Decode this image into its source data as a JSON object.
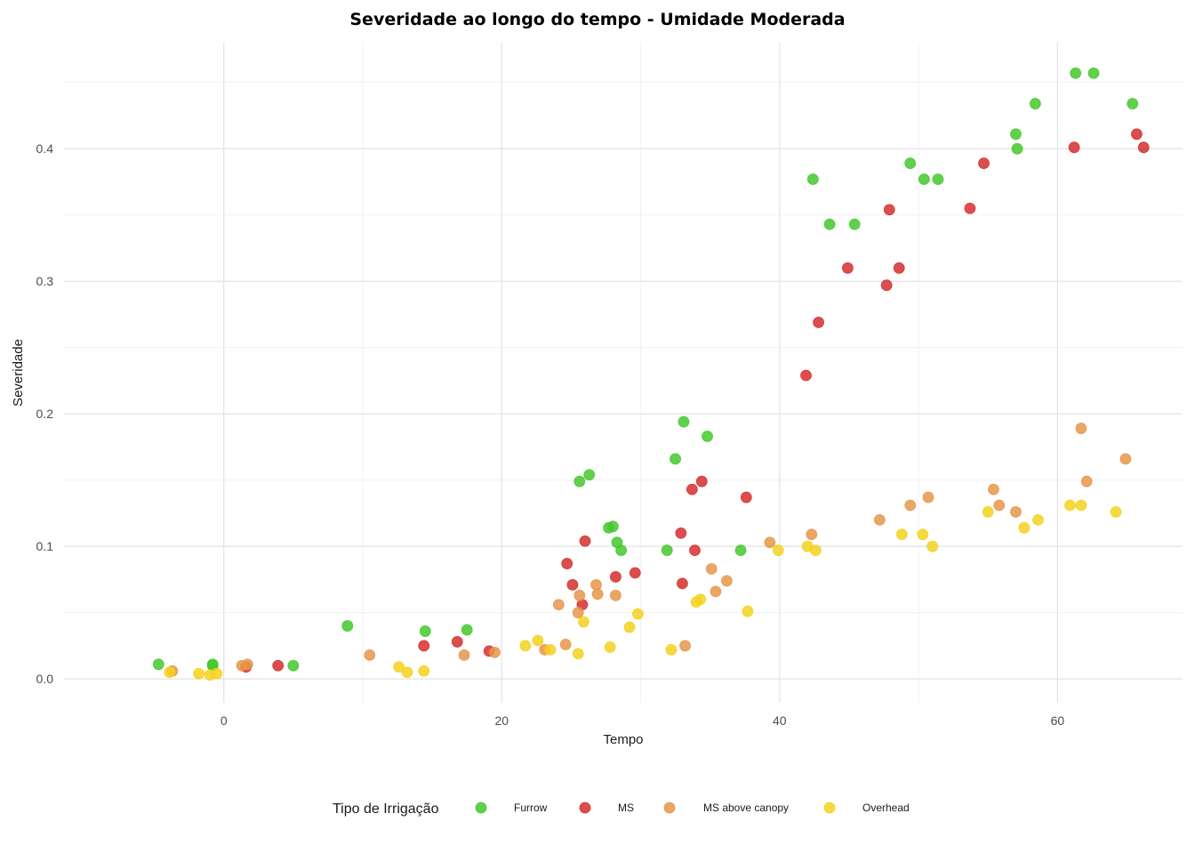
{
  "chart_data": {
    "type": "scatter",
    "title": "Severidade ao longo do tempo - Umidade Moderada",
    "xlabel": "Tempo",
    "ylabel": "Severidade",
    "xlim": [
      -11.5,
      69
    ],
    "ylim": [
      -0.018,
      0.48
    ],
    "x_ticks": [
      0,
      20,
      40,
      60
    ],
    "y_ticks": [
      0.0,
      0.1,
      0.2,
      0.3,
      0.4
    ],
    "x_tick_labels": [
      "0",
      "20",
      "40",
      "60"
    ],
    "y_tick_labels": [
      "0.0",
      "0.1",
      "0.2",
      "0.3",
      "0.4"
    ],
    "grid": true,
    "legend": {
      "title": "Tipo de Irrigação",
      "position": "bottom"
    },
    "series": [
      {
        "name": "Furrow",
        "color": "#44c82e",
        "points": [
          [
            -4.7,
            0.011
          ],
          [
            -0.8,
            0.011
          ],
          [
            -0.8,
            0.01
          ],
          [
            5,
            0.01
          ],
          [
            8.9,
            0.04
          ],
          [
            14.5,
            0.036
          ],
          [
            17.5,
            0.037
          ],
          [
            27.7,
            0.114
          ],
          [
            28.6,
            0.097
          ],
          [
            31.9,
            0.097
          ],
          [
            37.2,
            0.097
          ],
          [
            25.6,
            0.149
          ],
          [
            26.3,
            0.154
          ],
          [
            28.0,
            0.115
          ],
          [
            28.3,
            0.103
          ],
          [
            32.5,
            0.166
          ],
          [
            33.1,
            0.194
          ],
          [
            34.8,
            0.183
          ],
          [
            42.4,
            0.377
          ],
          [
            43.6,
            0.343
          ],
          [
            45.4,
            0.343
          ],
          [
            49.4,
            0.389
          ],
          [
            50.4,
            0.377
          ],
          [
            51.4,
            0.377
          ],
          [
            57.0,
            0.411
          ],
          [
            57.1,
            0.4
          ],
          [
            58.4,
            0.434
          ],
          [
            61.3,
            0.457
          ],
          [
            62.6,
            0.457
          ],
          [
            65.4,
            0.434
          ]
        ]
      },
      {
        "name": "MS",
        "color": "#d62f2f",
        "points": [
          [
            1.6,
            0.009
          ],
          [
            3.9,
            0.01
          ],
          [
            14.4,
            0.025
          ],
          [
            16.8,
            0.028
          ],
          [
            19.1,
            0.021
          ],
          [
            28.2,
            0.077
          ],
          [
            29.6,
            0.08
          ],
          [
            33.0,
            0.072
          ],
          [
            24.7,
            0.087
          ],
          [
            25.1,
            0.071
          ],
          [
            25.8,
            0.056
          ],
          [
            26.0,
            0.104
          ],
          [
            32.9,
            0.11
          ],
          [
            33.9,
            0.097
          ],
          [
            33.7,
            0.143
          ],
          [
            34.4,
            0.149
          ],
          [
            37.6,
            0.137
          ],
          [
            41.9,
            0.229
          ],
          [
            42.8,
            0.269
          ],
          [
            44.9,
            0.31
          ],
          [
            47.7,
            0.297
          ],
          [
            48.6,
            0.31
          ],
          [
            47.9,
            0.354
          ],
          [
            53.7,
            0.355
          ],
          [
            54.7,
            0.389
          ],
          [
            61.2,
            0.401
          ],
          [
            65.7,
            0.411
          ],
          [
            66.2,
            0.401
          ]
        ]
      },
      {
        "name": "MS above canopy",
        "color": "#e8964a",
        "points": [
          [
            -3.7,
            0.006
          ],
          [
            1.3,
            0.01
          ],
          [
            1.7,
            0.011
          ],
          [
            10.5,
            0.018
          ],
          [
            17.3,
            0.018
          ],
          [
            19.5,
            0.02
          ],
          [
            23.1,
            0.022
          ],
          [
            24.6,
            0.026
          ],
          [
            33.2,
            0.025
          ],
          [
            24.1,
            0.056
          ],
          [
            25.5,
            0.05
          ],
          [
            26.9,
            0.064
          ],
          [
            25.6,
            0.063
          ],
          [
            26.8,
            0.071
          ],
          [
            28.2,
            0.063
          ],
          [
            35.1,
            0.083
          ],
          [
            35.4,
            0.066
          ],
          [
            36.2,
            0.074
          ],
          [
            39.3,
            0.103
          ],
          [
            42.3,
            0.109
          ],
          [
            47.2,
            0.12
          ],
          [
            49.4,
            0.131
          ],
          [
            50.7,
            0.137
          ],
          [
            55.4,
            0.143
          ],
          [
            55.8,
            0.131
          ],
          [
            57.0,
            0.126
          ],
          [
            61.7,
            0.189
          ],
          [
            62.1,
            0.149
          ],
          [
            64.9,
            0.166
          ]
        ]
      },
      {
        "name": "Overhead",
        "color": "#f4d21e",
        "points": [
          [
            -3.9,
            0.005
          ],
          [
            -1.8,
            0.004
          ],
          [
            -1.0,
            0.003
          ],
          [
            -0.5,
            0.004
          ],
          [
            12.6,
            0.009
          ],
          [
            13.2,
            0.005
          ],
          [
            14.4,
            0.006
          ],
          [
            25.5,
            0.019
          ],
          [
            27.8,
            0.024
          ],
          [
            32.2,
            0.022
          ],
          [
            21.7,
            0.025
          ],
          [
            22.6,
            0.029
          ],
          [
            23.5,
            0.022
          ],
          [
            25.9,
            0.043
          ],
          [
            29.2,
            0.039
          ],
          [
            29.8,
            0.049
          ],
          [
            34.0,
            0.058
          ],
          [
            34.3,
            0.06
          ],
          [
            37.7,
            0.051
          ],
          [
            39.9,
            0.097
          ],
          [
            42.0,
            0.1
          ],
          [
            42.6,
            0.097
          ],
          [
            48.8,
            0.109
          ],
          [
            50.3,
            0.109
          ],
          [
            51.0,
            0.1
          ],
          [
            55.0,
            0.126
          ],
          [
            57.6,
            0.114
          ],
          [
            58.6,
            0.12
          ],
          [
            60.9,
            0.131
          ],
          [
            61.7,
            0.131
          ],
          [
            64.2,
            0.126
          ]
        ]
      }
    ]
  }
}
